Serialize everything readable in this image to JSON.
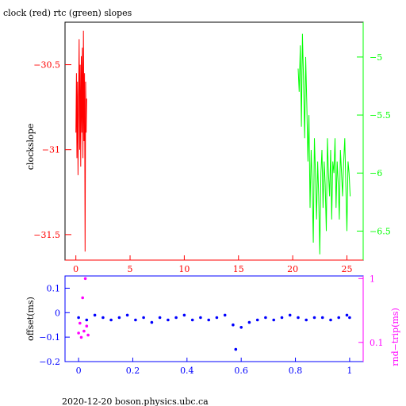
{
  "header": {
    "title": "clock (red) rtc (green) slopes"
  },
  "footer": {
    "stamp": "2020-12-20  boson.physics.ubc.ca"
  },
  "colors": {
    "red": "#ff0000",
    "green": "#00ff00",
    "blue": "#0000ff",
    "magenta": "#ff00ff",
    "axis": "#000000"
  },
  "chart_data": [
    {
      "type": "line",
      "title": "clock (red) rtc (green) slopes",
      "ylabel": "clockslope",
      "xlim": [
        -1,
        26.5
      ],
      "ylim": [
        -31.65,
        -30.25
      ],
      "y2lim": [
        -6.75,
        -4.7
      ],
      "xticks": [
        0,
        5,
        10,
        15,
        20,
        25
      ],
      "yticks": [
        -30.5,
        -31,
        -31.5
      ],
      "ytick_labels": [
        "−30.5",
        "−31",
        "−31.5"
      ],
      "y2ticks": [
        -5,
        -5.5,
        -6,
        -6.5
      ],
      "y2tick_labels": [
        "−5",
        "−5.5",
        "−6",
        "−6.5"
      ],
      "series": [
        {
          "color": "red",
          "axis": "left",
          "x": [
            0.0,
            0.05,
            0.1,
            0.15,
            0.2,
            0.25,
            0.3,
            0.35,
            0.4,
            0.45,
            0.5,
            0.55,
            0.6,
            0.65,
            0.7,
            0.75,
            0.8,
            0.85,
            0.9,
            0.95,
            1.0
          ],
          "y": [
            -30.9,
            -30.55,
            -31.05,
            -30.6,
            -31.15,
            -30.7,
            -30.35,
            -31.0,
            -30.5,
            -31.1,
            -30.45,
            -30.9,
            -30.4,
            -31.05,
            -30.3,
            -30.95,
            -30.55,
            -31.6,
            -30.6,
            -30.9,
            -30.7
          ]
        },
        {
          "color": "green",
          "axis": "right",
          "x": [
            20.5,
            20.6,
            20.7,
            20.8,
            20.9,
            21.0,
            21.1,
            21.2,
            21.3,
            21.4,
            21.5,
            21.6,
            21.7,
            21.8,
            21.9,
            22.0,
            22.1,
            22.2,
            22.3,
            22.4,
            22.5,
            22.6,
            22.7,
            22.8,
            22.9,
            23.0,
            23.1,
            23.2,
            23.3,
            23.4,
            23.5,
            23.6,
            23.7,
            23.8,
            23.9,
            24.0,
            24.1,
            24.2,
            24.3,
            24.4,
            24.5,
            24.6,
            24.7,
            24.8,
            24.9,
            25.0,
            25.1,
            25.2,
            25.3
          ],
          "y": [
            -5.1,
            -5.3,
            -4.9,
            -5.6,
            -4.8,
            -5.2,
            -5.7,
            -5.0,
            -5.4,
            -5.9,
            -5.5,
            -6.3,
            -5.8,
            -6.1,
            -6.6,
            -5.7,
            -6.0,
            -6.4,
            -5.9,
            -6.2,
            -6.7,
            -6.0,
            -5.8,
            -6.3,
            -5.9,
            -6.1,
            -6.5,
            -5.7,
            -6.0,
            -6.2,
            -5.8,
            -6.4,
            -5.9,
            -6.0,
            -5.7,
            -6.3,
            -5.9,
            -6.1,
            -6.4,
            -5.8,
            -6.0,
            -6.2,
            -5.9,
            -5.7,
            -6.1,
            -6.5,
            -5.9,
            -6.0,
            -6.2
          ]
        }
      ]
    },
    {
      "type": "scatter",
      "ylabel": "offset(ms)",
      "y2label": "rnd−trip(ms)",
      "xlim": [
        -0.05,
        1.05
      ],
      "ylim": [
        -0.2,
        0.15
      ],
      "y2_scale": "log",
      "y2lim": [
        0.05,
        1.1
      ],
      "xticks": [
        0,
        0.2,
        0.4,
        0.6,
        0.8,
        1
      ],
      "xtick_labels": [
        "0",
        "0.2",
        "0.4",
        "0.6",
        "0.8",
        "1"
      ],
      "yticks": [
        0.1,
        0,
        -0.1,
        -0.2
      ],
      "ytick_labels": [
        "0.1",
        "0",
        "−0.1",
        "−0.2"
      ],
      "y2ticks": [
        1,
        0.1
      ],
      "y2tick_labels": [
        "1",
        "0.1"
      ],
      "series": [
        {
          "color": "blue",
          "axis": "left",
          "x": [
            0.0,
            0.03,
            0.06,
            0.09,
            0.12,
            0.15,
            0.18,
            0.21,
            0.24,
            0.27,
            0.3,
            0.33,
            0.36,
            0.39,
            0.42,
            0.45,
            0.48,
            0.51,
            0.54,
            0.57,
            0.58,
            0.6,
            0.63,
            0.66,
            0.69,
            0.72,
            0.75,
            0.78,
            0.81,
            0.84,
            0.87,
            0.9,
            0.93,
            0.96,
            0.99,
            1.0
          ],
          "y": [
            -0.02,
            -0.03,
            -0.01,
            -0.02,
            -0.03,
            -0.02,
            -0.01,
            -0.03,
            -0.02,
            -0.04,
            -0.02,
            -0.03,
            -0.02,
            -0.01,
            -0.03,
            -0.02,
            -0.03,
            -0.02,
            -0.01,
            -0.05,
            -0.15,
            -0.06,
            -0.04,
            -0.03,
            -0.02,
            -0.03,
            -0.02,
            -0.01,
            -0.02,
            -0.03,
            -0.02,
            -0.02,
            -0.03,
            -0.02,
            -0.01,
            -0.02
          ]
        },
        {
          "color": "magenta",
          "axis": "right",
          "x": [
            0.0,
            0.005,
            0.01,
            0.015,
            0.02,
            0.025,
            0.03,
            0.035
          ],
          "y": [
            0.14,
            0.2,
            0.12,
            0.5,
            0.15,
            1.0,
            0.18,
            0.13
          ]
        }
      ]
    }
  ]
}
